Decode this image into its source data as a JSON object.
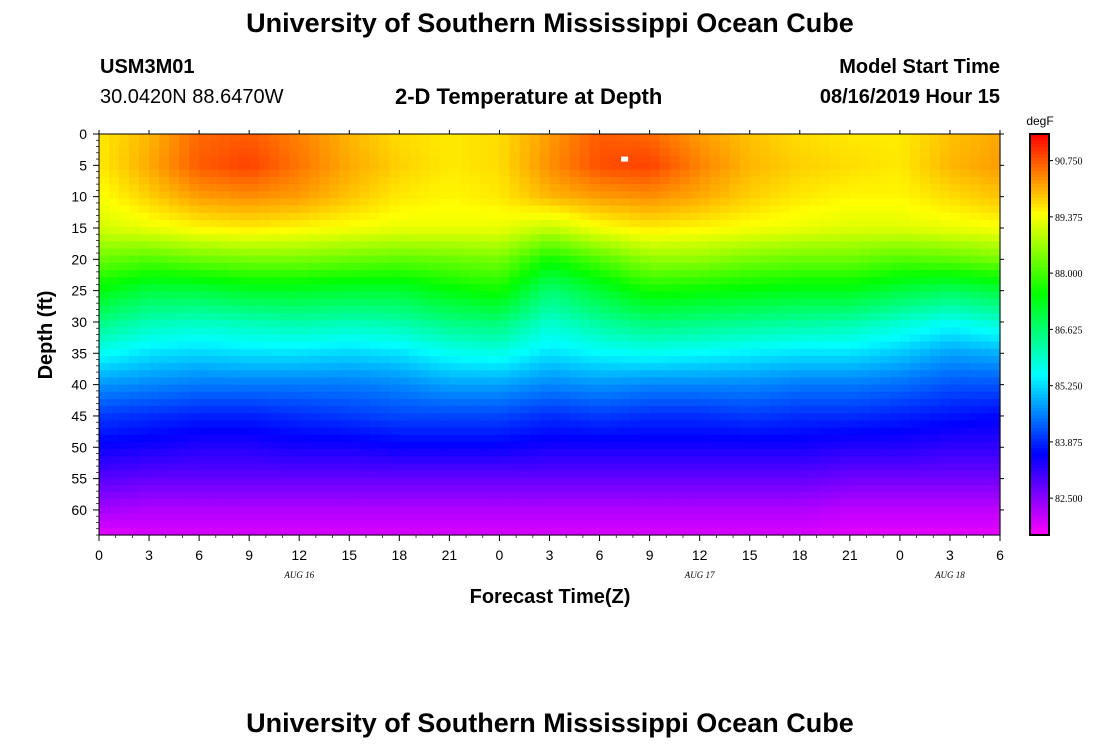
{
  "header": {
    "title_top": "University of Southern Mississippi Ocean Cube",
    "title_bottom": "University of Southern Mississippi Ocean Cube",
    "station_id": "USM3M01",
    "coordinates": "30.0420N 88.6470W",
    "plot_title": "2-D Temperature at Depth",
    "model_start_label": "Model Start Time",
    "model_start_value": "08/16/2019 Hour 15"
  },
  "chart_data": {
    "type": "heatmap",
    "title": "2-D Temperature at Depth",
    "xlabel": "Forecast Time(Z)",
    "ylabel": "Depth (ft)",
    "x_range_hours": [
      0,
      54
    ],
    "ylim": [
      0,
      64
    ],
    "x_ticks": [
      {
        "hour": 0,
        "label": "0"
      },
      {
        "hour": 3,
        "label": "3"
      },
      {
        "hour": 6,
        "label": "6"
      },
      {
        "hour": 9,
        "label": "9"
      },
      {
        "hour": 12,
        "label": "12"
      },
      {
        "hour": 15,
        "label": "15"
      },
      {
        "hour": 18,
        "label": "18"
      },
      {
        "hour": 21,
        "label": "21"
      },
      {
        "hour": 24,
        "label": "0"
      },
      {
        "hour": 27,
        "label": "3"
      },
      {
        "hour": 30,
        "label": "6"
      },
      {
        "hour": 33,
        "label": "9"
      },
      {
        "hour": 36,
        "label": "12"
      },
      {
        "hour": 39,
        "label": "15"
      },
      {
        "hour": 42,
        "label": "18"
      },
      {
        "hour": 45,
        "label": "21"
      },
      {
        "hour": 48,
        "label": "0"
      },
      {
        "hour": 51,
        "label": "3"
      },
      {
        "hour": 54,
        "label": "6"
      }
    ],
    "day_labels": [
      {
        "hour": 12,
        "label": "AUG 16"
      },
      {
        "hour": 36,
        "label": "AUG 17"
      },
      {
        "hour": 51,
        "label": "AUG 18"
      }
    ],
    "y_ticks": [
      0,
      5,
      10,
      15,
      20,
      25,
      30,
      35,
      40,
      45,
      50,
      55,
      60
    ],
    "colorbar": {
      "units": "degF",
      "min": 81.6,
      "max": 91.4,
      "ticks": [
        90.75,
        89.375,
        88.0,
        86.625,
        85.25,
        83.875,
        82.5
      ],
      "tick_labels": [
        "90.750",
        "89.375",
        "88.000",
        "86.625",
        "85.250",
        "83.875",
        "82.500"
      ]
    },
    "time_hours": [
      0,
      3,
      6,
      9,
      12,
      15,
      18,
      21,
      24,
      27,
      30,
      33,
      36,
      39,
      42,
      45,
      48,
      51,
      54
    ],
    "depth_ft": [
      0,
      5,
      10,
      15,
      20,
      25,
      30,
      35,
      40,
      45,
      50,
      55,
      60,
      64
    ],
    "temperature_degF": [
      [
        89.6,
        90.0,
        90.6,
        90.7,
        90.4,
        90.0,
        89.7,
        89.6,
        89.7,
        90.2,
        90.7,
        90.6,
        90.2,
        89.9,
        89.7,
        89.6,
        89.6,
        89.9,
        90.1
      ],
      [
        89.6,
        90.1,
        90.7,
        90.9,
        90.5,
        90.1,
        89.8,
        89.6,
        89.7,
        90.3,
        90.8,
        90.9,
        90.4,
        90.0,
        89.8,
        89.7,
        89.6,
        90.0,
        90.2
      ],
      [
        89.4,
        89.8,
        90.2,
        90.3,
        90.2,
        89.9,
        89.6,
        89.5,
        89.6,
        90.0,
        90.2,
        90.3,
        90.1,
        89.8,
        89.6,
        89.5,
        89.5,
        89.7,
        89.9
      ],
      [
        89.1,
        89.3,
        89.5,
        89.6,
        89.5,
        89.4,
        89.3,
        89.3,
        89.3,
        89.0,
        89.4,
        89.6,
        89.5,
        89.4,
        89.3,
        89.2,
        89.2,
        89.3,
        89.4
      ],
      [
        88.3,
        88.1,
        88.3,
        88.4,
        88.4,
        88.3,
        88.2,
        88.3,
        88.4,
        87.6,
        88.1,
        88.6,
        88.6,
        88.4,
        88.3,
        88.3,
        88.1,
        88.2,
        88.4
      ],
      [
        87.4,
        87.0,
        87.0,
        87.2,
        87.2,
        87.1,
        87.1,
        87.4,
        87.6,
        86.6,
        87.1,
        87.6,
        87.5,
        87.4,
        87.3,
        87.3,
        87.0,
        86.8,
        87.0
      ],
      [
        86.5,
        86.1,
        86.0,
        86.1,
        86.2,
        86.1,
        86.2,
        86.5,
        86.6,
        85.9,
        86.3,
        86.6,
        86.5,
        86.4,
        86.3,
        86.2,
        85.9,
        85.6,
        85.9
      ],
      [
        85.6,
        85.3,
        85.2,
        85.3,
        85.3,
        85.2,
        85.3,
        85.6,
        85.7,
        85.3,
        85.5,
        85.6,
        85.5,
        85.4,
        85.3,
        85.3,
        85.1,
        84.8,
        84.9
      ],
      [
        84.7,
        84.6,
        84.5,
        84.5,
        84.5,
        84.5,
        84.6,
        84.8,
        84.8,
        84.6,
        84.7,
        84.6,
        84.6,
        84.6,
        84.5,
        84.5,
        84.4,
        84.2,
        84.2
      ],
      [
        84.0,
        83.9,
        83.8,
        83.8,
        83.9,
        84.0,
        84.1,
        84.1,
        84.1,
        83.9,
        84.0,
        83.9,
        83.9,
        84.0,
        83.9,
        83.9,
        83.8,
        83.7,
        83.6
      ],
      [
        83.5,
        83.4,
        83.3,
        83.3,
        83.4,
        83.4,
        83.5,
        83.5,
        83.5,
        83.4,
        83.4,
        83.4,
        83.4,
        83.4,
        83.4,
        83.3,
        83.3,
        83.2,
        83.2
      ],
      [
        82.9,
        82.8,
        82.8,
        82.8,
        82.8,
        82.8,
        82.8,
        82.8,
        82.8,
        82.8,
        82.8,
        82.8,
        82.8,
        82.8,
        82.8,
        82.7,
        82.7,
        82.7,
        82.7
      ],
      [
        82.3,
        82.2,
        82.2,
        82.2,
        82.2,
        82.2,
        82.2,
        82.2,
        82.2,
        82.2,
        82.2,
        82.2,
        82.2,
        82.2,
        82.2,
        82.1,
        82.1,
        82.1,
        82.1
      ],
      [
        81.8,
        81.9,
        81.9,
        81.9,
        81.9,
        81.9,
        81.9,
        81.9,
        81.9,
        81.9,
        81.9,
        81.9,
        81.9,
        81.9,
        81.9,
        81.8,
        81.8,
        81.8,
        81.8
      ]
    ],
    "marker": {
      "hour": 31.5,
      "depth_ft": 4,
      "shape": "white square"
    }
  }
}
